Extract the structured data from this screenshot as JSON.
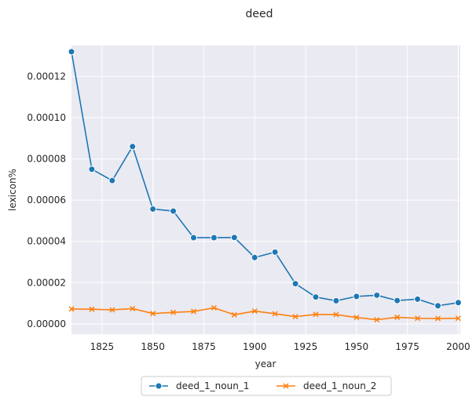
{
  "chart_data": {
    "type": "line",
    "title": "deed",
    "xlabel": "year",
    "ylabel": "lexicon%",
    "xlim": [
      1810,
      2001
    ],
    "ylim": [
      -5e-06,
      0.000135
    ],
    "x_ticks": [
      1825,
      1850,
      1875,
      1900,
      1925,
      1950,
      1975,
      2000
    ],
    "x_tick_labels": [
      "1825",
      "1850",
      "1875",
      "1900",
      "1925",
      "1950",
      "1975",
      "2000"
    ],
    "y_ticks": [
      0,
      2e-05,
      4e-05,
      6e-05,
      8e-05,
      0.0001,
      0.00012
    ],
    "y_tick_labels": [
      "0.00000",
      "0.00002",
      "0.00004",
      "0.00006",
      "0.00008",
      "0.00010",
      "0.00012"
    ],
    "grid": true,
    "background": "#eaeaf2",
    "legend_position": "bottom-center",
    "x": [
      1810,
      1820,
      1830,
      1840,
      1850,
      1860,
      1870,
      1880,
      1890,
      1900,
      1910,
      1920,
      1930,
      1940,
      1950,
      1960,
      1970,
      1980,
      1990,
      2000
    ],
    "series": [
      {
        "name": "deed_1_noun_1",
        "color": "#1f77b4",
        "marker": "circle",
        "values": [
          0.000132,
          7.5e-05,
          6.95e-05,
          8.6e-05,
          5.57e-05,
          5.47e-05,
          4.18e-05,
          4.18e-05,
          4.19e-05,
          3.22e-05,
          3.48e-05,
          1.95e-05,
          1.3e-05,
          1.12e-05,
          1.33e-05,
          1.39e-05,
          1.13e-05,
          1.2e-05,
          8.8e-06,
          1.03e-05
        ]
      },
      {
        "name": "deed_1_noun_2",
        "color": "#ff7f0e",
        "marker": "x",
        "values": [
          7.2e-06,
          7.1e-06,
          6.8e-06,
          7.4e-06,
          5e-06,
          5.6e-06,
          6e-06,
          7.8e-06,
          4.4e-06,
          6.2e-06,
          4.9e-06,
          3.5e-06,
          4.6e-06,
          4.5e-06,
          3.1e-06,
          2e-06,
          3.2e-06,
          2.7e-06,
          2.6e-06,
          2.7e-06
        ]
      }
    ]
  }
}
